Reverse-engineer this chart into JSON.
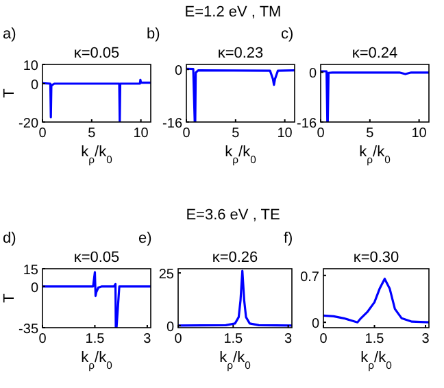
{
  "chart_data": [
    {
      "type": "other",
      "title": "E=1.2 eV , TM"
    },
    {
      "type": "line",
      "title": "κ=0.05",
      "annotations": [
        "a)"
      ],
      "xlabel": "k$_{ρ}$/k$_{0}$",
      "ylabel": "T",
      "xlim": [
        0,
        11
      ],
      "ylim": [
        -20,
        10
      ],
      "xticks": [
        0,
        5,
        10
      ],
      "yticks": [
        -20,
        0,
        10
      ],
      "series": [
        {
          "color": "#0000ff",
          "x": [
            0,
            0.8,
            0.85,
            0.9,
            1.2,
            7.8,
            7.85,
            7.9,
            9.9,
            9.95,
            10,
            11
          ],
          "values": [
            0.2,
            0,
            -17.5,
            -1,
            0,
            0,
            -20,
            0,
            0,
            2,
            0.5,
            0.5
          ]
        }
      ]
    },
    {
      "type": "line",
      "title": "κ=0.23",
      "annotations": [
        "b)"
      ],
      "xlabel": "k$_{ρ}$/k$_{0}$",
      "xlim": [
        0,
        11
      ],
      "ylim": [
        -16,
        1.5
      ],
      "xticks": [
        0,
        5,
        10
      ],
      "yticks": [
        -16,
        0
      ],
      "series": [
        {
          "color": "#0000ff",
          "x": [
            0,
            0.7,
            0.85,
            0.9,
            0.95,
            1.2,
            8.5,
            8.8,
            8.9,
            9,
            9.3,
            11
          ],
          "values": [
            0.2,
            0.1,
            -16,
            -16,
            -1,
            -0.3,
            -0.4,
            -3,
            -4.7,
            -3,
            -0.4,
            -0.3
          ]
        }
      ]
    },
    {
      "type": "line",
      "title": "κ=0.24",
      "annotations": [
        "c)"
      ],
      "xlabel": "k$_{ρ}$/k$_{0}$",
      "xlim": [
        0,
        11
      ],
      "ylim": [
        -16,
        2.5
      ],
      "xticks": [
        0,
        5,
        10
      ],
      "yticks": [
        -16,
        0
      ],
      "series": [
        {
          "color": "#0000ff",
          "x": [
            0,
            0.6,
            0.68,
            0.72,
            0.8,
            1.2,
            8,
            8.6,
            9.2,
            11
          ],
          "values": [
            0.3,
            0.3,
            -16,
            -16,
            -0.2,
            -0.1,
            -0.1,
            -0.6,
            -0.1,
            -0.1
          ]
        }
      ]
    },
    {
      "type": "other",
      "title": "E=3.6 eV , TE"
    },
    {
      "type": "line",
      "title": "κ=0.05",
      "annotations": [
        "d)"
      ],
      "xlabel": "k$_{ρ}$/k$_{0}$",
      "ylabel": "T",
      "xlim": [
        0,
        3.1
      ],
      "ylim": [
        -35,
        15
      ],
      "xticks": [
        0,
        1.5,
        3
      ],
      "yticks": [
        -35,
        0,
        15
      ],
      "series": [
        {
          "color": "#0000ff",
          "x": [
            0,
            1.45,
            1.5,
            1.52,
            1.54,
            1.6,
            1.7,
            2.05,
            2.09,
            2.1,
            2.12,
            2.2,
            3.1
          ],
          "values": [
            0,
            0,
            12,
            -8,
            -5,
            -1,
            0,
            0,
            2,
            -35,
            -35,
            0,
            0
          ]
        }
      ]
    },
    {
      "type": "line",
      "title": "κ=0.26",
      "annotations": [
        "e)"
      ],
      "xlabel": "k$_{ρ}$/k$_{0}$",
      "xlim": [
        0,
        3.1
      ],
      "ylim": [
        -1,
        27
      ],
      "xticks": [
        0,
        1.5,
        3
      ],
      "yticks": [
        0,
        25
      ],
      "series": [
        {
          "color": "#0000ff",
          "x": [
            0,
            1.3,
            1.55,
            1.65,
            1.7,
            1.75,
            1.8,
            1.85,
            1.95,
            2.2,
            3.1
          ],
          "values": [
            0,
            0.2,
            1,
            4,
            12,
            26,
            12,
            4,
            1,
            0.2,
            0
          ]
        }
      ]
    },
    {
      "type": "line",
      "title": "κ=0.30",
      "annotations": [
        "f)"
      ],
      "xlabel": "k$_{ρ}$/k$_{0}$",
      "xlim": [
        0,
        3.1
      ],
      "ylim": [
        -0.08,
        0.8
      ],
      "xticks": [
        0,
        1.5,
        3
      ],
      "yticks": [
        0,
        0.7
      ],
      "series": [
        {
          "color": "#0000ff",
          "x": [
            0,
            0.3,
            0.6,
            0.8,
            1,
            1.1,
            1.3,
            1.5,
            1.65,
            1.8,
            1.95,
            2.1,
            2.3,
            2.6,
            3.1
          ],
          "values": [
            0.1,
            0.09,
            0.06,
            0.03,
            0,
            0.06,
            0.16,
            0.3,
            0.5,
            0.65,
            0.5,
            0.2,
            0.06,
            0.01,
            0
          ]
        }
      ]
    }
  ]
}
